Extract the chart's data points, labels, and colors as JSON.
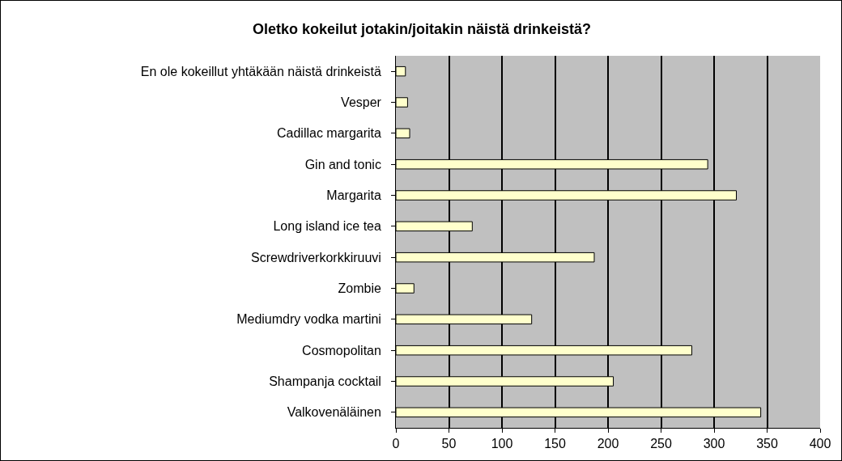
{
  "chart_data": {
    "type": "bar",
    "orientation": "horizontal",
    "title": "Oletko kokeilut jotakin/joitakin näistä drinkeistä?",
    "categories": [
      "En ole kokeillut yhtäkään näistä drinkeistä",
      "Vesper",
      "Cadillac margarita",
      "Gin and tonic",
      "Margarita",
      "Long island ice tea",
      "Screwdriverkorkkiruuvi",
      "Zombie",
      "Mediumdry vodka martini",
      "Cosmopolitan",
      "Shampanja cocktail",
      "Valkovenäläinen"
    ],
    "values": [
      9,
      11,
      13,
      294,
      321,
      72,
      187,
      17,
      128,
      279,
      205,
      344
    ],
    "color": "#ffffcc",
    "xlim": [
      0,
      400
    ],
    "xticks": [
      0,
      50,
      100,
      150,
      200,
      250,
      300,
      350,
      400
    ],
    "grid": "x"
  }
}
